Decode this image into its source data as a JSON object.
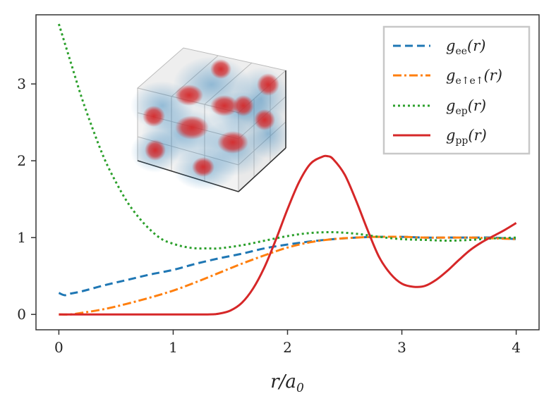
{
  "chart_data": {
    "type": "line",
    "title": "",
    "xlabel": "r/a₀",
    "ylabel": "",
    "xlim": [
      -0.2,
      4.2
    ],
    "ylim": [
      -0.2,
      3.9
    ],
    "xticks": [
      0,
      1,
      2,
      3,
      4
    ],
    "xtick_labels": [
      "0",
      "1",
      "2",
      "3",
      "4"
    ],
    "yticks": [
      0,
      1,
      2,
      3
    ],
    "ytick_labels": [
      "0",
      "1",
      "2",
      "3"
    ],
    "grid": false,
    "legend_position": "top-right",
    "series": [
      {
        "name": "g_ee(r)",
        "legend_label": "gee(r)",
        "color": "#1f77b4",
        "style": "dashed",
        "x": [
          0.0,
          0.05,
          0.1,
          0.2,
          0.4,
          0.6,
          0.8,
          1.0,
          1.2,
          1.4,
          1.6,
          1.8,
          2.0,
          2.2,
          2.4,
          2.6,
          2.8,
          3.0,
          3.2,
          3.4,
          3.6,
          3.8,
          4.0
        ],
        "y": [
          0.28,
          0.25,
          0.27,
          0.3,
          0.38,
          0.45,
          0.52,
          0.58,
          0.66,
          0.73,
          0.79,
          0.86,
          0.91,
          0.95,
          0.98,
          1.0,
          1.01,
          1.01,
          1.0,
          1.0,
          1.0,
          1.0,
          0.98
        ]
      },
      {
        "name": "g_e↑e↑(r)",
        "legend_label": "ge↑e↑(r)",
        "color": "#ff7f0e",
        "style": "dashdot",
        "x": [
          0.0,
          0.1,
          0.2,
          0.4,
          0.6,
          0.8,
          1.0,
          1.2,
          1.4,
          1.6,
          1.8,
          2.0,
          2.2,
          2.4,
          2.6,
          2.8,
          3.0,
          3.2,
          3.4,
          3.6,
          3.8,
          4.0
        ],
        "y": [
          0.0,
          0.0,
          0.02,
          0.07,
          0.14,
          0.22,
          0.31,
          0.42,
          0.54,
          0.66,
          0.77,
          0.87,
          0.94,
          0.98,
          1.0,
          1.01,
          1.01,
          1.0,
          1.0,
          1.0,
          0.99,
          0.98
        ]
      },
      {
        "name": "g_ep(r)",
        "legend_label": "gep(r)",
        "color": "#2ca02c",
        "style": "dotted",
        "x": [
          0.0,
          0.1,
          0.2,
          0.3,
          0.4,
          0.5,
          0.6,
          0.7,
          0.8,
          0.9,
          1.0,
          1.1,
          1.2,
          1.3,
          1.4,
          1.6,
          1.8,
          2.0,
          2.2,
          2.4,
          2.6,
          2.8,
          3.0,
          3.2,
          3.4,
          3.6,
          3.8,
          4.0
        ],
        "y": [
          3.78,
          3.3,
          2.82,
          2.4,
          2.02,
          1.72,
          1.46,
          1.26,
          1.1,
          0.98,
          0.92,
          0.88,
          0.86,
          0.86,
          0.86,
          0.9,
          0.96,
          1.02,
          1.06,
          1.07,
          1.05,
          1.01,
          0.98,
          0.97,
          0.96,
          0.97,
          0.99,
          1.0
        ]
      },
      {
        "name": "g_pp(r)",
        "legend_label": "gpp(r)",
        "color": "#d62728",
        "style": "solid",
        "x": [
          0.0,
          0.5,
          1.0,
          1.3,
          1.4,
          1.5,
          1.6,
          1.7,
          1.8,
          1.9,
          2.0,
          2.1,
          2.2,
          2.3,
          2.35,
          2.4,
          2.5,
          2.6,
          2.7,
          2.8,
          2.9,
          3.0,
          3.1,
          3.2,
          3.3,
          3.4,
          3.5,
          3.6,
          3.7,
          3.8,
          3.9,
          4.0
        ],
        "y": [
          0.0,
          0.0,
          0.0,
          0.0,
          0.01,
          0.05,
          0.15,
          0.34,
          0.62,
          0.98,
          1.37,
          1.72,
          1.96,
          2.05,
          2.06,
          2.02,
          1.82,
          1.48,
          1.1,
          0.75,
          0.53,
          0.4,
          0.36,
          0.37,
          0.45,
          0.57,
          0.71,
          0.84,
          0.94,
          1.02,
          1.1,
          1.19
        ]
      }
    ]
  },
  "legend": [
    {
      "base": "g",
      "sub": "ee",
      "suffix": "(r)"
    },
    {
      "base": "g",
      "sub": "e↑e↑",
      "suffix": "(r)"
    },
    {
      "base": "g",
      "sub": "ep",
      "suffix": "(r)"
    },
    {
      "base": "g",
      "sub": "pp",
      "suffix": "(r)"
    }
  ],
  "axis_label": {
    "main": "r/a",
    "sub": "0"
  },
  "inset": {
    "description_type": "3d-scatter-cube",
    "electron_color": "#1f77b4",
    "proton_color": "#d62728"
  }
}
